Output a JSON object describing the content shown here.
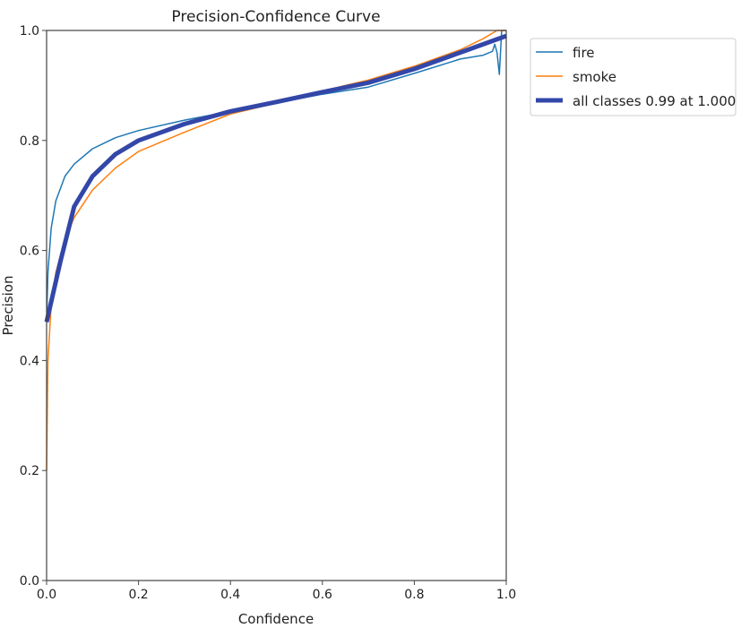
{
  "chart_data": {
    "type": "line",
    "title": "Precision-Confidence Curve",
    "xlabel": "Confidence",
    "ylabel": "Precision",
    "xlim": [
      0,
      1
    ],
    "ylim": [
      0,
      1
    ],
    "xticks": [
      "0.0",
      "0.2",
      "0.4",
      "0.6",
      "0.8",
      "1.0"
    ],
    "yticks": [
      "0.0",
      "0.2",
      "0.4",
      "0.6",
      "0.8",
      "1.0"
    ],
    "grid": false,
    "legend_position": "outside-top-right",
    "series": [
      {
        "name": "fire",
        "color": "#1f77b4",
        "width": "thin",
        "x": [
          0,
          0.003,
          0.01,
          0.02,
          0.04,
          0.06,
          0.1,
          0.15,
          0.2,
          0.3,
          0.4,
          0.5,
          0.6,
          0.7,
          0.8,
          0.9,
          0.95,
          0.97,
          0.975,
          0.98,
          0.985,
          0.99,
          1.0
        ],
        "y": [
          0.47,
          0.56,
          0.64,
          0.69,
          0.735,
          0.757,
          0.785,
          0.805,
          0.818,
          0.837,
          0.853,
          0.868,
          0.884,
          0.897,
          0.922,
          0.948,
          0.955,
          0.962,
          0.975,
          0.96,
          0.92,
          1.0,
          1.0
        ]
      },
      {
        "name": "smoke",
        "color": "#ff7f0e",
        "width": "thin",
        "x": [
          0,
          0.003,
          0.01,
          0.02,
          0.04,
          0.06,
          0.1,
          0.15,
          0.2,
          0.3,
          0.4,
          0.5,
          0.6,
          0.7,
          0.8,
          0.9,
          0.95,
          0.98,
          1.0
        ],
        "y": [
          0.2,
          0.4,
          0.5,
          0.56,
          0.62,
          0.66,
          0.71,
          0.75,
          0.78,
          0.815,
          0.848,
          0.868,
          0.89,
          0.91,
          0.935,
          0.965,
          0.985,
          1.0,
          1.0
        ]
      },
      {
        "name": "all classes 0.99 at 1.000",
        "color": "#3347a8",
        "width": "thick",
        "x": [
          0,
          0.03,
          0.06,
          0.1,
          0.15,
          0.2,
          0.3,
          0.4,
          0.5,
          0.6,
          0.7,
          0.8,
          0.9,
          1.0
        ],
        "y": [
          0.47,
          0.58,
          0.68,
          0.735,
          0.775,
          0.8,
          0.83,
          0.853,
          0.87,
          0.888,
          0.905,
          0.93,
          0.96,
          0.99
        ]
      }
    ]
  }
}
